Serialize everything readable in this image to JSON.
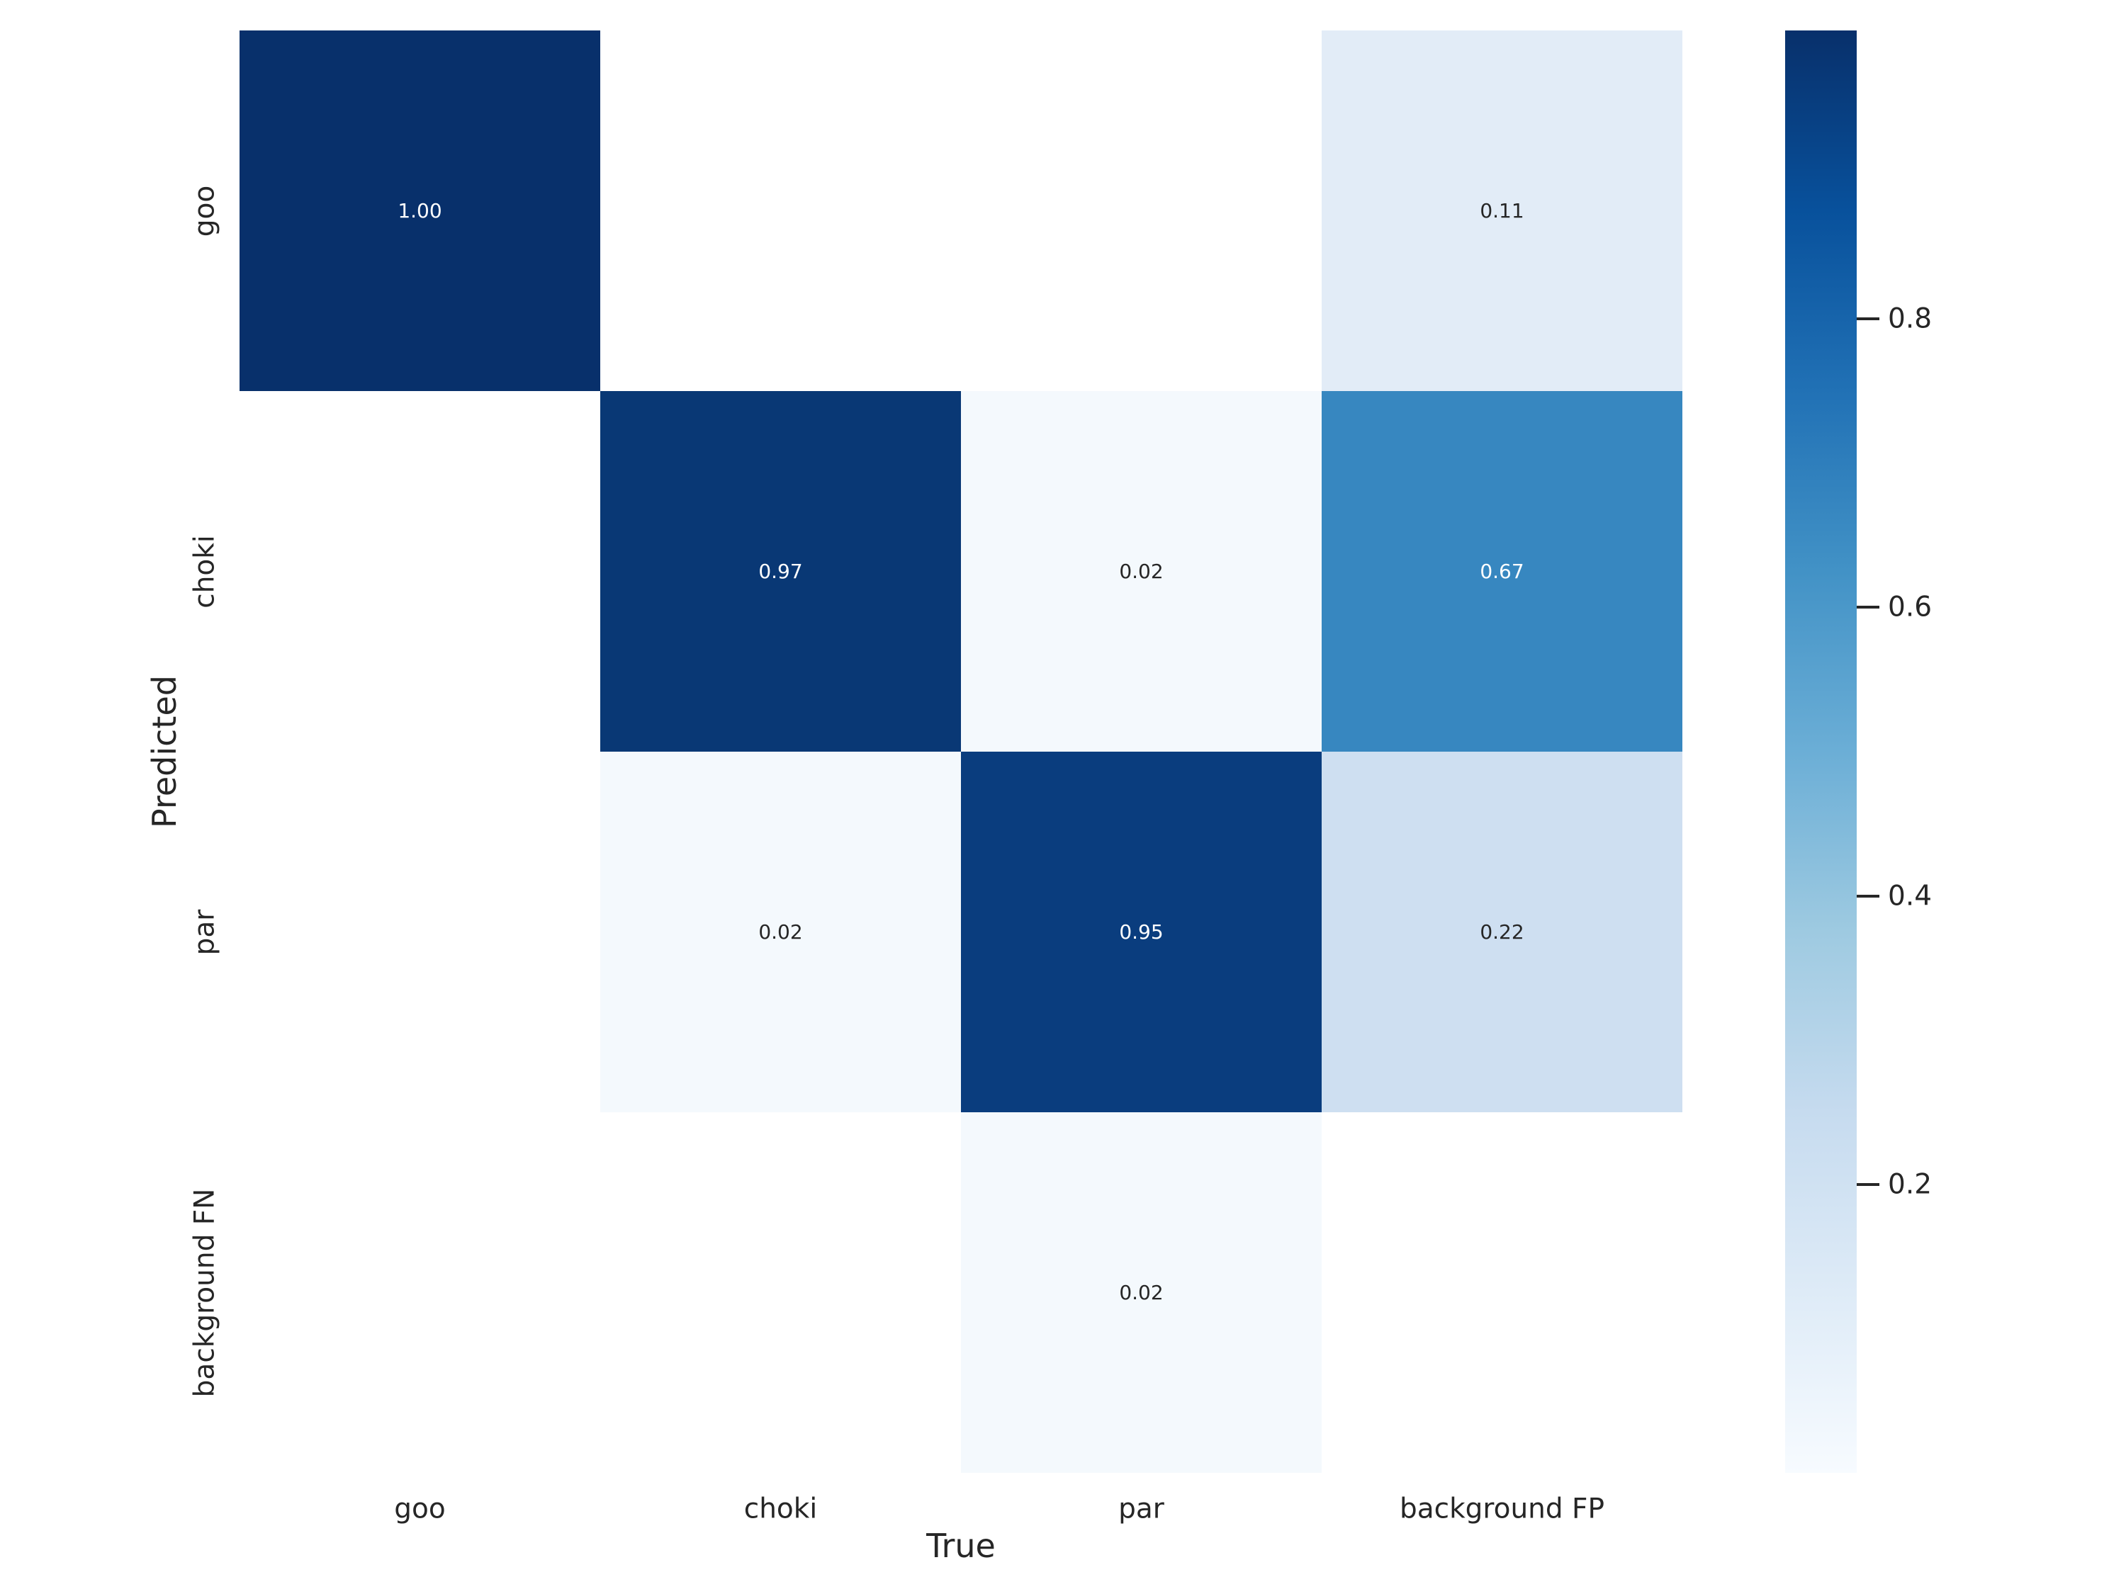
{
  "figure": {
    "background": "#ffffff",
    "text_color": "#262626"
  },
  "chart_data": {
    "type": "heatmap",
    "title": "",
    "xlabel": "True",
    "ylabel": "Predicted",
    "x_categories": [
      "goo",
      "choki",
      "par",
      "background FP"
    ],
    "y_categories": [
      "goo",
      "choki",
      "par",
      "background FN"
    ],
    "matrix": [
      [
        1.0,
        null,
        null,
        0.11
      ],
      [
        null,
        0.97,
        0.02,
        0.67
      ],
      [
        null,
        0.02,
        0.95,
        0.22
      ],
      [
        null,
        null,
        0.02,
        null
      ]
    ],
    "cells": [
      {
        "row": 0,
        "col": 0,
        "value": 1.0,
        "label": "1.00",
        "color": "#08306b",
        "text_color": "#ffffff"
      },
      {
        "row": 0,
        "col": 3,
        "value": 0.11,
        "label": "0.11",
        "color": "#e2ecf7",
        "text_color": "#262626"
      },
      {
        "row": 1,
        "col": 1,
        "value": 0.97,
        "label": "0.97",
        "color": "#093875",
        "text_color": "#ffffff"
      },
      {
        "row": 1,
        "col": 2,
        "value": 0.02,
        "label": "0.02",
        "color": "#f4f9fd",
        "text_color": "#262626"
      },
      {
        "row": 1,
        "col": 3,
        "value": 0.67,
        "label": "0.67",
        "color": "#3787c0",
        "text_color": "#ffffff"
      },
      {
        "row": 2,
        "col": 1,
        "value": 0.02,
        "label": "0.02",
        "color": "#f4f9fd",
        "text_color": "#262626"
      },
      {
        "row": 2,
        "col": 2,
        "value": 0.95,
        "label": "0.95",
        "color": "#0a3d7e",
        "text_color": "#ffffff"
      },
      {
        "row": 2,
        "col": 3,
        "value": 0.22,
        "label": "0.22",
        "color": "#cedff1",
        "text_color": "#262626"
      },
      {
        "row": 3,
        "col": 2,
        "value": 0.02,
        "label": "0.02",
        "color": "#f4f9fd",
        "text_color": "#262626"
      }
    ],
    "empty_cell_color": "#ffffff",
    "colormap": "Blues",
    "vmin": 0.0,
    "vmax": 1.0,
    "grid": false,
    "legend_position": "right",
    "colorbar": {
      "ticks": [
        {
          "value": 0.8,
          "label": "0.8"
        },
        {
          "value": 0.6,
          "label": "0.6"
        },
        {
          "value": 0.4,
          "label": "0.4"
        },
        {
          "value": 0.2,
          "label": "0.2"
        }
      ],
      "gradient_stops_top_to_bottom": [
        {
          "pos": 0.0,
          "color": "#08306b"
        },
        {
          "pos": 0.125,
          "color": "#08519c"
        },
        {
          "pos": 0.25,
          "color": "#2171b5"
        },
        {
          "pos": 0.375,
          "color": "#4292c6"
        },
        {
          "pos": 0.5,
          "color": "#6baed6"
        },
        {
          "pos": 0.625,
          "color": "#9ecae1"
        },
        {
          "pos": 0.75,
          "color": "#c6dbef"
        },
        {
          "pos": 0.875,
          "color": "#deebf7"
        },
        {
          "pos": 1.0,
          "color": "#f7fbff"
        }
      ]
    }
  }
}
